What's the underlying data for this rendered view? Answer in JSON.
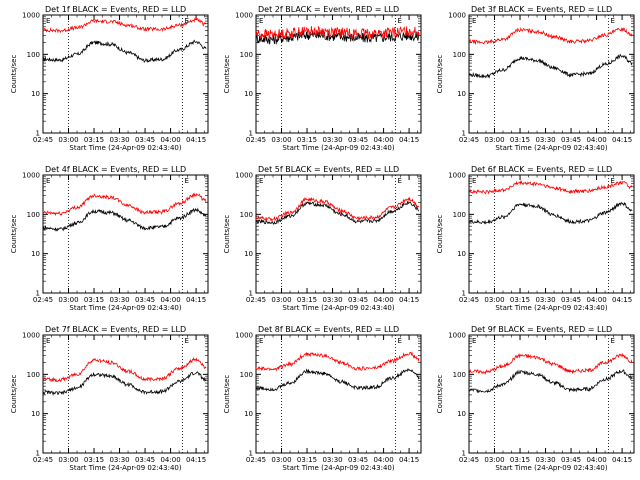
{
  "figure": {
    "colors": {
      "events": "#000000",
      "lld": "#ff0000",
      "axes": "#000000"
    }
  },
  "chart_data": [
    {
      "type": "line",
      "title": "Det 1f BLACK = Events, RED = LLD",
      "xlabel": "Start Time (24-Apr-09 02:43:40)",
      "ylabel": "Counts/sec",
      "yscale": "log",
      "ylim": [
        1,
        1000
      ],
      "xlim": [
        "02:45",
        "04:22"
      ],
      "x_ticks": [
        "02:45",
        "03:00",
        "03:15",
        "03:30",
        "03:45",
        "04:00",
        "04:15"
      ],
      "y_ticks": [
        "1",
        "10",
        "100",
        "1000"
      ],
      "markers": [
        "E",
        "E"
      ],
      "vlines": [
        "03:00",
        "04:07"
      ],
      "x": [
        "02:45",
        "02:55",
        "03:05",
        "03:15",
        "03:25",
        "03:35",
        "03:45",
        "03:55",
        "04:05",
        "04:15",
        "04:21"
      ],
      "series": [
        {
          "name": "Events",
          "values": [
            75,
            72,
            100,
            200,
            180,
            110,
            70,
            75,
            130,
            210,
            140
          ]
        },
        {
          "name": "LLD",
          "values": [
            420,
            400,
            470,
            700,
            680,
            550,
            440,
            430,
            550,
            750,
            560
          ]
        }
      ]
    },
    {
      "type": "line",
      "title": "Det 2f BLACK = Events, RED = LLD",
      "xlabel": "Start Time (24-Apr-09 02:43:40)",
      "ylabel": "Counts/sec",
      "yscale": "log",
      "ylim": [
        1,
        1000
      ],
      "xlim": [
        "02:45",
        "04:22"
      ],
      "x_ticks": [
        "02:45",
        "03:00",
        "03:15",
        "03:30",
        "03:45",
        "04:00",
        "04:15"
      ],
      "y_ticks": [
        "1",
        "10",
        "100",
        "1000"
      ],
      "markers": [
        "E",
        "E"
      ],
      "vlines": [
        "03:00",
        "04:07"
      ],
      "x": [
        "02:45",
        "02:55",
        "03:05",
        "03:15",
        "03:25",
        "03:35",
        "03:45",
        "03:55",
        "04:05",
        "04:15",
        "04:21"
      ],
      "series": [
        {
          "name": "Events",
          "values": [
            250,
            240,
            270,
            310,
            300,
            280,
            260,
            260,
            280,
            300,
            280
          ]
        },
        {
          "name": "LLD",
          "values": [
            330,
            320,
            350,
            390,
            380,
            360,
            340,
            340,
            360,
            390,
            360
          ]
        }
      ]
    },
    {
      "type": "line",
      "title": "Det 3f BLACK = Events, RED = LLD",
      "xlabel": "Start Time (24-Apr-09 02:43:40)",
      "ylabel": "Counts/sec",
      "yscale": "log",
      "ylim": [
        1,
        1000
      ],
      "xlim": [
        "02:45",
        "04:22"
      ],
      "x_ticks": [
        "02:45",
        "03:00",
        "03:15",
        "03:30",
        "03:45",
        "04:00",
        "04:15"
      ],
      "y_ticks": [
        "1",
        "10",
        "100",
        "1000"
      ],
      "markers": [
        "E",
        "E"
      ],
      "vlines": [
        "03:00",
        "04:07"
      ],
      "x": [
        "02:45",
        "02:55",
        "03:05",
        "03:15",
        "03:25",
        "03:35",
        "03:45",
        "03:55",
        "04:05",
        "04:15",
        "04:21"
      ],
      "series": [
        {
          "name": "Events",
          "values": [
            30,
            28,
            40,
            80,
            70,
            45,
            30,
            32,
            55,
            90,
            60
          ]
        },
        {
          "name": "LLD",
          "values": [
            210,
            200,
            240,
            420,
            380,
            280,
            210,
            220,
            310,
            440,
            320
          ]
        }
      ]
    },
    {
      "type": "line",
      "title": "Det 4f BLACK = Events, RED = LLD",
      "xlabel": "Start Time (24-Apr-09 02:43:40)",
      "ylabel": "Counts/sec",
      "yscale": "log",
      "ylim": [
        1,
        1000
      ],
      "xlim": [
        "02:45",
        "04:22"
      ],
      "x_ticks": [
        "02:45",
        "03:00",
        "03:15",
        "03:30",
        "03:45",
        "04:00",
        "04:15"
      ],
      "y_ticks": [
        "1",
        "10",
        "100",
        "1000"
      ],
      "markers": [
        "E",
        "E"
      ],
      "vlines": [
        "03:00",
        "04:07"
      ],
      "x": [
        "02:45",
        "02:55",
        "03:05",
        "03:15",
        "03:25",
        "03:35",
        "03:45",
        "03:55",
        "04:05",
        "04:15",
        "04:21"
      ],
      "series": [
        {
          "name": "Events",
          "values": [
            45,
            42,
            60,
            120,
            110,
            70,
            45,
            48,
            80,
            130,
            90
          ]
        },
        {
          "name": "LLD",
          "values": [
            110,
            105,
            150,
            300,
            270,
            170,
            110,
            115,
            190,
            320,
            220
          ]
        }
      ]
    },
    {
      "type": "line",
      "title": "Det 5f BLACK = Events, RED = LLD",
      "xlabel": "Start Time (24-Apr-09 02:43:40)",
      "ylabel": "Counts/sec",
      "yscale": "log",
      "ylim": [
        1,
        1000
      ],
      "xlim": [
        "02:45",
        "04:22"
      ],
      "x_ticks": [
        "02:45",
        "03:00",
        "03:15",
        "03:30",
        "03:45",
        "04:00",
        "04:15"
      ],
      "y_ticks": [
        "1",
        "10",
        "100",
        "1000"
      ],
      "markers": [
        "E",
        "E"
      ],
      "vlines": [
        "03:00",
        "04:07"
      ],
      "x": [
        "02:45",
        "02:55",
        "03:05",
        "03:15",
        "03:25",
        "03:35",
        "03:45",
        "03:55",
        "04:05",
        "04:15",
        "04:21"
      ],
      "series": [
        {
          "name": "Events",
          "values": [
            65,
            62,
            90,
            190,
            170,
            100,
            65,
            68,
            120,
            200,
            130
          ]
        },
        {
          "name": "LLD",
          "values": [
            80,
            76,
            110,
            240,
            210,
            125,
            80,
            84,
            150,
            250,
            160
          ]
        }
      ]
    },
    {
      "type": "line",
      "title": "Det 6f BLACK = Events, RED = LLD",
      "xlabel": "Start Time (24-Apr-09 02:43:40)",
      "ylabel": "Counts/sec",
      "yscale": "log",
      "ylim": [
        1,
        1000
      ],
      "xlim": [
        "02:45",
        "04:22"
      ],
      "x_ticks": [
        "02:45",
        "03:00",
        "03:15",
        "03:30",
        "03:45",
        "04:00",
        "04:15"
      ],
      "y_ticks": [
        "1",
        "10",
        "100",
        "1000"
      ],
      "markers": [
        "E",
        "E"
      ],
      "vlines": [
        "03:00",
        "04:07"
      ],
      "x": [
        "02:45",
        "02:55",
        "03:05",
        "03:15",
        "03:25",
        "03:35",
        "03:45",
        "03:55",
        "04:05",
        "04:15",
        "04:21"
      ],
      "series": [
        {
          "name": "Events",
          "values": [
            65,
            62,
            85,
            180,
            160,
            95,
            65,
            68,
            110,
            190,
            120
          ]
        },
        {
          "name": "LLD",
          "values": [
            380,
            370,
            420,
            620,
            590,
            470,
            380,
            390,
            490,
            650,
            480
          ]
        }
      ]
    },
    {
      "type": "line",
      "title": "Det 7f BLACK = Events, RED = LLD",
      "xlabel": "Start Time (24-Apr-09 02:43:40)",
      "ylabel": "Counts/sec",
      "yscale": "log",
      "ylim": [
        1,
        1000
      ],
      "xlim": [
        "02:45",
        "04:22"
      ],
      "x_ticks": [
        "02:45",
        "03:00",
        "03:15",
        "03:30",
        "03:45",
        "04:00",
        "04:15"
      ],
      "y_ticks": [
        "1",
        "10",
        "100",
        "1000"
      ],
      "markers": [
        "E",
        "E"
      ],
      "vlines": [
        "03:00",
        "04:07"
      ],
      "x": [
        "02:45",
        "02:55",
        "03:05",
        "03:15",
        "03:25",
        "03:35",
        "03:45",
        "03:55",
        "04:05",
        "04:15",
        "04:21"
      ],
      "series": [
        {
          "name": "Events",
          "values": [
            35,
            33,
            45,
            100,
            90,
            55,
            35,
            37,
            65,
            110,
            70
          ]
        },
        {
          "name": "LLD",
          "values": [
            75,
            72,
            100,
            230,
            200,
            120,
            75,
            78,
            140,
            240,
            150
          ]
        }
      ]
    },
    {
      "type": "line",
      "title": "Det 8f BLACK = Events, RED = LLD",
      "xlabel": "Start Time (24-Apr-09 02:43:40)",
      "ylabel": "Counts/sec",
      "yscale": "log",
      "ylim": [
        1,
        1000
      ],
      "xlim": [
        "02:45",
        "04:22"
      ],
      "x_ticks": [
        "02:45",
        "03:00",
        "03:15",
        "03:30",
        "03:45",
        "04:00",
        "04:15"
      ],
      "y_ticks": [
        "1",
        "10",
        "100",
        "1000"
      ],
      "markers": [
        "E",
        "E"
      ],
      "vlines": [
        "03:00",
        "04:07"
      ],
      "x": [
        "02:45",
        "02:55",
        "03:05",
        "03:15",
        "03:25",
        "03:35",
        "03:45",
        "03:55",
        "04:05",
        "04:15",
        "04:21"
      ],
      "series": [
        {
          "name": "Events",
          "values": [
            45,
            42,
            60,
            120,
            105,
            65,
            45,
            47,
            80,
            130,
            85
          ]
        },
        {
          "name": "LLD",
          "values": [
            140,
            135,
            180,
            330,
            300,
            200,
            140,
            145,
            220,
            340,
            240
          ]
        }
      ]
    },
    {
      "type": "line",
      "title": "Det 9f BLACK = Events, RED = LLD",
      "xlabel": "Start Time (24-Apr-09 02:43:40)",
      "ylabel": "Counts/sec",
      "yscale": "log",
      "ylim": [
        1,
        1000
      ],
      "xlim": [
        "02:45",
        "04:22"
      ],
      "x_ticks": [
        "02:45",
        "03:00",
        "03:15",
        "03:30",
        "03:45",
        "04:00",
        "04:15"
      ],
      "y_ticks": [
        "1",
        "10",
        "100",
        "1000"
      ],
      "markers": [
        "E",
        "E"
      ],
      "vlines": [
        "03:00",
        "04:07"
      ],
      "x": [
        "02:45",
        "02:55",
        "03:05",
        "03:15",
        "03:25",
        "03:35",
        "03:45",
        "03:55",
        "04:05",
        "04:15",
        "04:21"
      ],
      "series": [
        {
          "name": "Events",
          "values": [
            40,
            38,
            55,
            115,
            100,
            60,
            40,
            42,
            75,
            120,
            80
          ]
        },
        {
          "name": "LLD",
          "values": [
            120,
            115,
            160,
            300,
            270,
            180,
            120,
            125,
            200,
            310,
            210
          ]
        }
      ]
    }
  ]
}
